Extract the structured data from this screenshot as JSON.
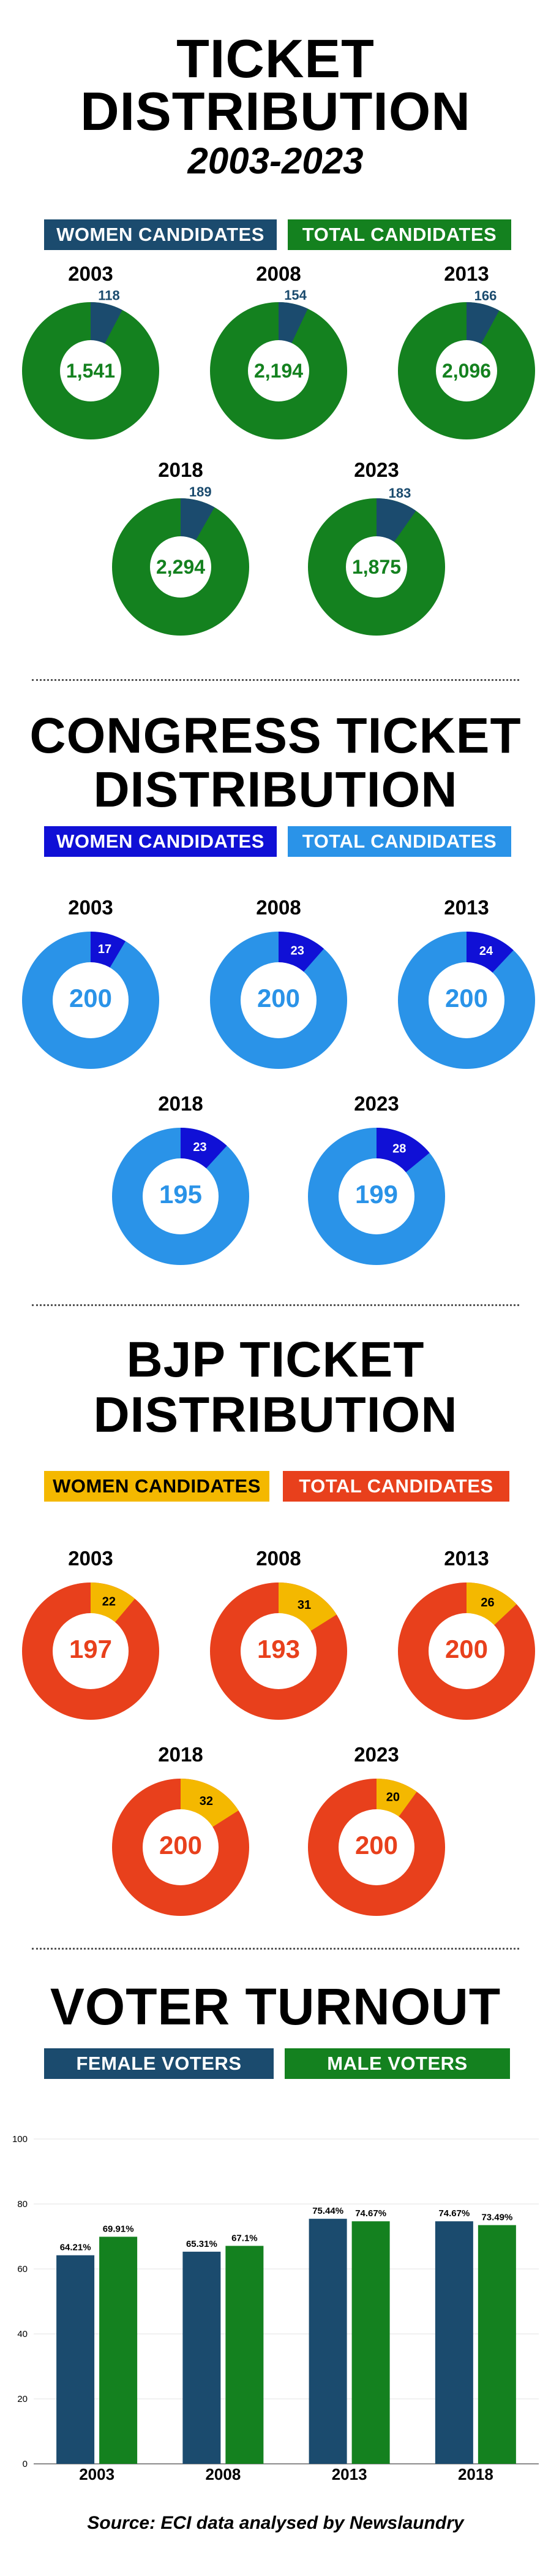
{
  "section1": {
    "title_line1": "TICKET",
    "title_line2": "DISTRIBUTION",
    "subtitle": "2003-2023",
    "legend": {
      "women": "WOMEN CANDIDATES",
      "total": "TOTAL CANDIDATES"
    },
    "colors": {
      "women": "#1b4b6e",
      "total": "#14811f",
      "center_text": "#14811f"
    },
    "items": [
      {
        "year": "2003",
        "women": 118,
        "total": 1541,
        "women_label": "118",
        "total_label": "1,541"
      },
      {
        "year": "2008",
        "women": 154,
        "total": 2194,
        "women_label": "154",
        "total_label": "2,194"
      },
      {
        "year": "2013",
        "women": 166,
        "total": 2096,
        "women_label": "166",
        "total_label": "2,096"
      },
      {
        "year": "2018",
        "women": 189,
        "total": 2294,
        "women_label": "189",
        "total_label": "2,294"
      },
      {
        "year": "2023",
        "women": 183,
        "total": 1875,
        "women_label": "183",
        "total_label": "1,875"
      }
    ]
  },
  "section2": {
    "title_line1": "CONGRESS TICKET",
    "title_line2": "DISTRIBUTION",
    "legend": {
      "women": "WOMEN CANDIDATES",
      "total": "TOTAL CANDIDATES"
    },
    "colors": {
      "women": "#1010d6",
      "total": "#2a93e8",
      "center_text": "#2a93e8"
    },
    "items": [
      {
        "year": "2003",
        "women": 17,
        "total": 200,
        "women_label": "17",
        "total_label": "200"
      },
      {
        "year": "2008",
        "women": 23,
        "total": 200,
        "women_label": "23",
        "total_label": "200"
      },
      {
        "year": "2013",
        "women": 24,
        "total": 200,
        "women_label": "24",
        "total_label": "200"
      },
      {
        "year": "2018",
        "women": 23,
        "total": 195,
        "women_label": "23",
        "total_label": "195"
      },
      {
        "year": "2023",
        "women": 28,
        "total": 199,
        "women_label": "28",
        "total_label": "199"
      }
    ]
  },
  "section3": {
    "title_line1": "BJP TICKET",
    "title_line2": "DISTRIBUTION",
    "legend": {
      "women": "WOMEN CANDIDATES",
      "total": "TOTAL CANDIDATES"
    },
    "colors": {
      "women": "#f4b800",
      "total": "#e8401c",
      "center_text": "#e8401c",
      "legend_women_text": "#000000"
    },
    "items": [
      {
        "year": "2003",
        "women": 22,
        "total": 197,
        "women_label": "22",
        "total_label": "197"
      },
      {
        "year": "2008",
        "women": 31,
        "total": 193,
        "women_label": "31",
        "total_label": "193"
      },
      {
        "year": "2013",
        "women": 26,
        "total": 200,
        "women_label": "26",
        "total_label": "200"
      },
      {
        "year": "2018",
        "women": 32,
        "total": 200,
        "women_label": "32",
        "total_label": "200"
      },
      {
        "year": "2023",
        "women": 20,
        "total": 200,
        "women_label": "20",
        "total_label": "200"
      }
    ]
  },
  "section4": {
    "title": "VOTER TURNOUT",
    "legend": {
      "female": "FEMALE VOTERS",
      "male": "MALE VOTERS"
    },
    "colors": {
      "female": "#1b4b6e",
      "male": "#14811f"
    }
  },
  "chart_data": {
    "type": "bar",
    "categories": [
      "2003",
      "2008",
      "2013",
      "2018"
    ],
    "series": [
      {
        "name": "FEMALE VOTERS",
        "values": [
          64.21,
          65.31,
          75.44,
          74.67
        ],
        "labels": [
          "64.21%",
          "65.31%",
          "75.44%",
          "74.67%"
        ]
      },
      {
        "name": "MALE VOTERS",
        "values": [
          69.91,
          67.1,
          74.67,
          73.49
        ],
        "labels": [
          "69.91%",
          "67.1%",
          "74.67%",
          "73.49%"
        ]
      }
    ],
    "ylim": [
      0,
      100
    ],
    "yticks": [
      "0",
      "20",
      "40",
      "60",
      "80",
      "100"
    ],
    "grid": true
  },
  "source": "Source: ECI data analysed by Newslaundry"
}
